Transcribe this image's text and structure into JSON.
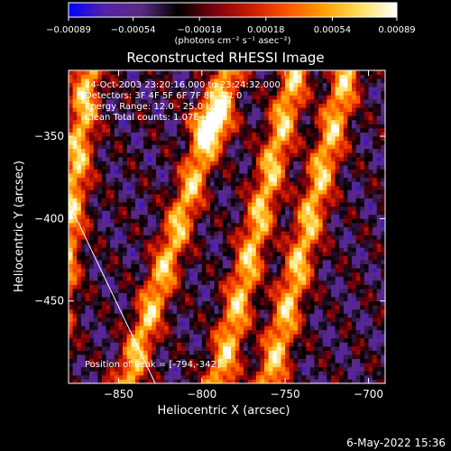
{
  "chart_data": {
    "type": "heatmap",
    "title": "Reconstructed RHESSI Image",
    "xlabel": "Heliocentric X (arcsec)",
    "ylabel": "Heliocentric Y (arcsec)",
    "xlim": [
      -880,
      -690
    ],
    "ylim": [
      -500,
      -310
    ],
    "x_ticks": [
      -850,
      -800,
      -750,
      -700
    ],
    "x_tick_labels": [
      "−850",
      "−800",
      "−750",
      "−700"
    ],
    "y_ticks": [
      -450,
      -400,
      -350
    ],
    "y_tick_labels": [
      "−450",
      "−400",
      "−350"
    ],
    "colorbar": {
      "min": -0.00089,
      "max": 0.00089,
      "tick_values": [
        -0.00089,
        -0.00054,
        -0.00018,
        0.00018,
        0.00054,
        0.00089
      ],
      "tick_labels": [
        "−0.00089",
        "−0.00054",
        "−0.00018",
        "0.00018",
        "0.00054",
        "0.00089"
      ],
      "unit_label": "(photons cm⁻² s⁻¹ asec⁻²)",
      "colors": [
        "#0000ff",
        "#5522aa",
        "#5a2a80",
        "#000000",
        "#7a0010",
        "#cc1a00",
        "#ff5500",
        "#ffa000",
        "#ffe060",
        "#ffffff"
      ]
    },
    "header_lines": [
      "24-Oct-2003 23:20:16.000 to 23:24:32.000",
      "Detectors: 3F 4F 5F 6F 7F 8F, Att 0",
      "Energy Range: 12.0 - 25.0 keV",
      "Clean    Total counts: 1.07E+03"
    ],
    "peak_label": "Position of Peak = [-794,-342]",
    "peak": [
      -794,
      -342
    ],
    "bright_ridges": [
      {
        "x_top": -790,
        "y_top": -330,
        "x_bottom": -845,
        "y_bottom": -500
      },
      {
        "x_top": -752,
        "y_top": -345,
        "x_bottom": -790,
        "y_bottom": -500
      },
      {
        "x_top": -720,
        "y_top": -340,
        "x_bottom": -760,
        "y_bottom": -500
      },
      {
        "x_top": -868,
        "y_top": -310,
        "x_bottom": -882,
        "y_bottom": -420
      }
    ],
    "limb": {
      "x_top": -880,
      "y_top": -390,
      "x_bottom": -828,
      "y_bottom": -500
    },
    "timestamp": "6-May-2022 15:36"
  }
}
